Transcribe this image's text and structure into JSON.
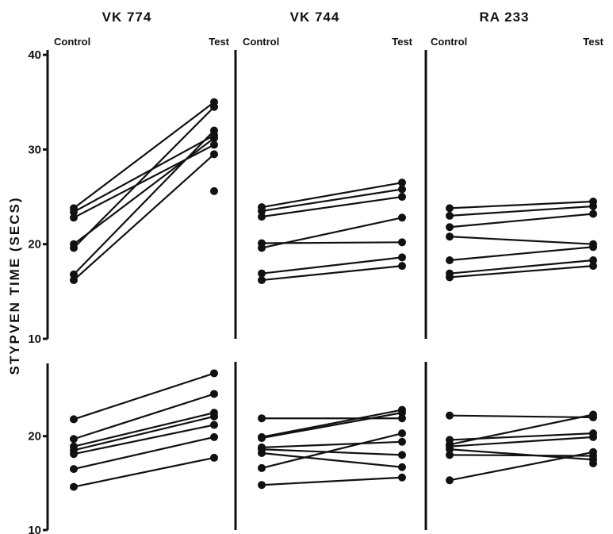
{
  "chart_data": {
    "type": "line",
    "ylabel": "STYPVEN   TIME   (SECS)",
    "x": [
      "Control",
      "Test"
    ],
    "panels": [
      {
        "title": "VK 774",
        "row": "upper",
        "ylim": [
          10,
          40
        ],
        "yticks": [
          10,
          20,
          30,
          40
        ],
        "pairs": [
          [
            23.8,
            35.0
          ],
          [
            23.4,
            31.5
          ],
          [
            22.8,
            30.5
          ],
          [
            20.0,
            31.2
          ],
          [
            19.6,
            34.5
          ],
          [
            16.8,
            32.0
          ],
          [
            16.2,
            29.5
          ],
          [
            null,
            25.6
          ]
        ]
      },
      {
        "title": "VK 744",
        "row": "upper",
        "ylim": [
          10,
          40
        ],
        "yticks": [],
        "pairs": [
          [
            23.9,
            26.5
          ],
          [
            23.5,
            25.8
          ],
          [
            22.9,
            25.0
          ],
          [
            20.1,
            20.2
          ],
          [
            19.6,
            22.8
          ],
          [
            16.9,
            18.6
          ],
          [
            16.2,
            17.7
          ]
        ]
      },
      {
        "title": "RA 233",
        "row": "upper",
        "ylim": [
          10,
          40
        ],
        "yticks": [],
        "pairs": [
          [
            23.8,
            24.5
          ],
          [
            23.0,
            24.0
          ],
          [
            21.8,
            23.2
          ],
          [
            20.8,
            20.0
          ],
          [
            18.3,
            19.7
          ],
          [
            16.9,
            18.3
          ],
          [
            16.5,
            17.7
          ]
        ]
      },
      {
        "title": "VK 774",
        "row": "lower",
        "ylim": [
          10,
          27
        ],
        "yticks": [
          10,
          20
        ],
        "pairs": [
          [
            21.8,
            26.7
          ],
          [
            19.7,
            24.5
          ],
          [
            18.9,
            22.5
          ],
          [
            18.5,
            22.1
          ],
          [
            18.1,
            21.2
          ],
          [
            16.5,
            19.9
          ],
          [
            14.6,
            17.7
          ]
        ]
      },
      {
        "title": "VK 744",
        "row": "lower",
        "ylim": [
          10,
          27
        ],
        "yticks": [],
        "pairs": [
          [
            21.9,
            21.9
          ],
          [
            19.9,
            22.8
          ],
          [
            19.8,
            22.5
          ],
          [
            18.8,
            19.4
          ],
          [
            18.6,
            18.0
          ],
          [
            18.2,
            16.7
          ],
          [
            16.6,
            20.3
          ],
          [
            14.8,
            15.6
          ]
        ]
      },
      {
        "title": "RA 233",
        "row": "lower",
        "ylim": [
          10,
          27
        ],
        "yticks": [],
        "pairs": [
          [
            22.2,
            22.0
          ],
          [
            19.6,
            20.3
          ],
          [
            19.1,
            22.3
          ],
          [
            18.9,
            19.9
          ],
          [
            18.6,
            17.5
          ],
          [
            18.0,
            17.9
          ],
          [
            15.3,
            18.3
          ],
          [
            null,
            17.1
          ]
        ]
      }
    ]
  },
  "labels": {
    "panel_titles": [
      "VK 774",
      "VK 744",
      "RA 233"
    ],
    "control": "Control",
    "test": "Test"
  }
}
